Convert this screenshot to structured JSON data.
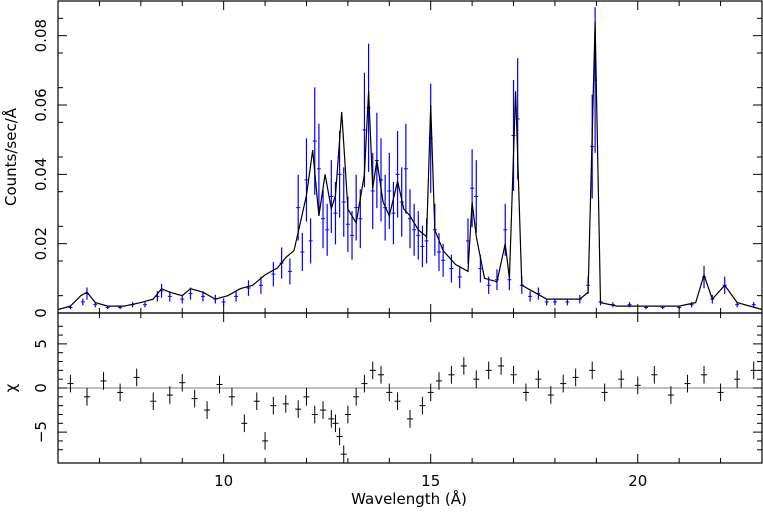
{
  "chart_data": [
    {
      "panel": "top",
      "type": "line",
      "xlabel": "",
      "ylabel": "Counts/sec/Å",
      "xlim": [
        6,
        23
      ],
      "ylim": [
        0,
        0.09
      ],
      "yticks": [
        0,
        0.02,
        0.04,
        0.06,
        0.08
      ],
      "ytick_labels": [
        "0",
        "0.02",
        "0.04",
        "0.06",
        "0.08"
      ],
      "colors": {
        "data": "#0000ff",
        "model": "#000000"
      },
      "series": [
        {
          "style": "blue-errorbars",
          "x": [
            6.3,
            6.6,
            6.7,
            6.9,
            7.2,
            7.5,
            7.8,
            8.1,
            8.4,
            8.5,
            8.7,
            9.0,
            9.2,
            9.5,
            9.8,
            10.0,
            10.3,
            10.6,
            10.9,
            11.2,
            11.4,
            11.6,
            11.8,
            11.9,
            12.0,
            12.1,
            12.2,
            12.3,
            12.4,
            12.5,
            12.6,
            12.7,
            12.8,
            12.9,
            13.0,
            13.1,
            13.2,
            13.3,
            13.4,
            13.5,
            13.6,
            13.7,
            13.8,
            13.9,
            14.0,
            14.1,
            14.2,
            14.3,
            14.4,
            14.5,
            14.6,
            14.7,
            14.8,
            14.9,
            15.0,
            15.1,
            15.2,
            15.3,
            15.5,
            15.7,
            15.9,
            16.0,
            16.1,
            16.2,
            16.4,
            16.6,
            16.8,
            16.9,
            17.0,
            17.1,
            17.2,
            17.4,
            17.6,
            17.8,
            18.0,
            18.3,
            18.6,
            18.8,
            18.9,
            18.97,
            19.1,
            19.4,
            19.8,
            20.2,
            20.6,
            21.0,
            21.3,
            21.6,
            21.8,
            22.1,
            22.4,
            22.8
          ],
          "y": [
            0.002,
            0.004,
            0.007,
            0.003,
            0.002,
            0.002,
            0.003,
            0.003,
            0.006,
            0.008,
            0.006,
            0.005,
            0.007,
            0.006,
            0.005,
            0.004,
            0.006,
            0.009,
            0.01,
            0.014,
            0.018,
            0.015,
            0.038,
            0.022,
            0.048,
            0.026,
            0.062,
            0.052,
            0.034,
            0.03,
            0.042,
            0.036,
            0.05,
            0.04,
            0.032,
            0.028,
            0.038,
            0.034,
            0.066,
            0.074,
            0.044,
            0.055,
            0.048,
            0.038,
            0.044,
            0.036,
            0.05,
            0.04,
            0.052,
            0.034,
            0.03,
            0.028,
            0.024,
            0.026,
            0.063,
            0.03,
            0.022,
            0.019,
            0.016,
            0.013,
            0.026,
            0.045,
            0.042,
            0.016,
            0.01,
            0.012,
            0.03,
            0.012,
            0.064,
            0.07,
            0.01,
            0.006,
            0.007,
            0.004,
            0.004,
            0.004,
            0.005,
            0.01,
            0.06,
            0.084,
            0.004,
            0.003,
            0.003,
            0.002,
            0.002,
            0.002,
            0.003,
            0.013,
            0.005,
            0.01,
            0.003,
            0.003
          ]
        },
        {
          "style": "black-model",
          "x": [
            6.0,
            6.3,
            6.55,
            6.7,
            6.9,
            7.2,
            7.6,
            8.0,
            8.3,
            8.5,
            8.7,
            9.0,
            9.2,
            9.5,
            9.8,
            10.1,
            10.4,
            10.7,
            11.0,
            11.3,
            11.5,
            11.7,
            11.85,
            12.0,
            12.15,
            12.3,
            12.45,
            12.6,
            12.7,
            12.85,
            13.0,
            13.2,
            13.4,
            13.5,
            13.6,
            13.7,
            13.85,
            14.0,
            14.2,
            14.35,
            14.5,
            14.7,
            14.9,
            15.0,
            15.1,
            15.3,
            15.6,
            15.9,
            16.0,
            16.1,
            16.3,
            16.6,
            16.8,
            16.9,
            17.05,
            17.2,
            17.5,
            17.8,
            18.2,
            18.6,
            18.8,
            18.97,
            19.1,
            19.5,
            20.0,
            20.5,
            21.0,
            21.4,
            21.6,
            21.8,
            22.1,
            22.4,
            23.0
          ],
          "y": [
            0.001,
            0.002,
            0.005,
            0.006,
            0.003,
            0.002,
            0.002,
            0.003,
            0.004,
            0.007,
            0.006,
            0.005,
            0.007,
            0.006,
            0.004,
            0.005,
            0.007,
            0.008,
            0.011,
            0.013,
            0.016,
            0.018,
            0.026,
            0.034,
            0.047,
            0.028,
            0.04,
            0.03,
            0.034,
            0.058,
            0.03,
            0.026,
            0.04,
            0.064,
            0.036,
            0.044,
            0.032,
            0.028,
            0.038,
            0.03,
            0.028,
            0.024,
            0.022,
            0.06,
            0.024,
            0.018,
            0.014,
            0.012,
            0.032,
            0.022,
            0.01,
            0.009,
            0.02,
            0.01,
            0.064,
            0.008,
            0.006,
            0.004,
            0.004,
            0.004,
            0.006,
            0.084,
            0.003,
            0.002,
            0.002,
            0.002,
            0.002,
            0.003,
            0.011,
            0.004,
            0.008,
            0.003,
            0.001
          ]
        }
      ]
    },
    {
      "panel": "bottom",
      "type": "scatter",
      "xlabel": "Wavelength (Å)",
      "ylabel": "χ",
      "xlim": [
        6,
        23
      ],
      "ylim": [
        -8.5,
        8.5
      ],
      "yticks": [
        -5,
        0,
        5
      ],
      "ytick_labels": [
        "−5",
        "0",
        "5"
      ],
      "xticks": [
        10,
        15,
        20
      ],
      "xtick_labels": [
        "10",
        "15",
        "20"
      ],
      "colors": {
        "residuals": "#000000"
      },
      "series": [
        {
          "style": "black-residuals",
          "x": [
            6.3,
            6.7,
            7.1,
            7.5,
            7.9,
            8.3,
            8.7,
            9.0,
            9.3,
            9.6,
            9.9,
            10.2,
            10.5,
            10.8,
            11.0,
            11.2,
            11.5,
            11.8,
            12.0,
            12.2,
            12.4,
            12.6,
            12.7,
            12.8,
            12.9,
            13.0,
            13.2,
            13.4,
            13.6,
            13.8,
            14.0,
            14.2,
            14.5,
            14.8,
            15.0,
            15.2,
            15.5,
            15.8,
            16.1,
            16.4,
            16.7,
            17.0,
            17.3,
            17.6,
            17.9,
            18.2,
            18.5,
            18.9,
            19.2,
            19.6,
            20.0,
            20.4,
            20.8,
            21.2,
            21.6,
            22.0,
            22.4,
            22.8
          ],
          "y": [
            0.5,
            -1.0,
            0.8,
            -0.5,
            1.2,
            -1.5,
            -0.8,
            0.6,
            -1.2,
            -2.5,
            0.4,
            -1.0,
            -4.0,
            -1.5,
            -6.0,
            -2.0,
            -1.8,
            -2.4,
            -1.0,
            -3.0,
            -2.5,
            -3.5,
            -4.0,
            -5.5,
            -7.5,
            -3.0,
            -1.0,
            0.5,
            2.0,
            1.5,
            -0.5,
            -1.5,
            -3.5,
            -2.0,
            -0.5,
            0.8,
            1.5,
            2.5,
            1.0,
            2.0,
            2.5,
            1.5,
            -0.5,
            1.0,
            -0.8,
            0.5,
            1.2,
            2.0,
            -0.5,
            1.0,
            0.3,
            1.5,
            -0.8,
            0.5,
            1.5,
            -0.5,
            1.0,
            2.0
          ]
        }
      ]
    }
  ]
}
